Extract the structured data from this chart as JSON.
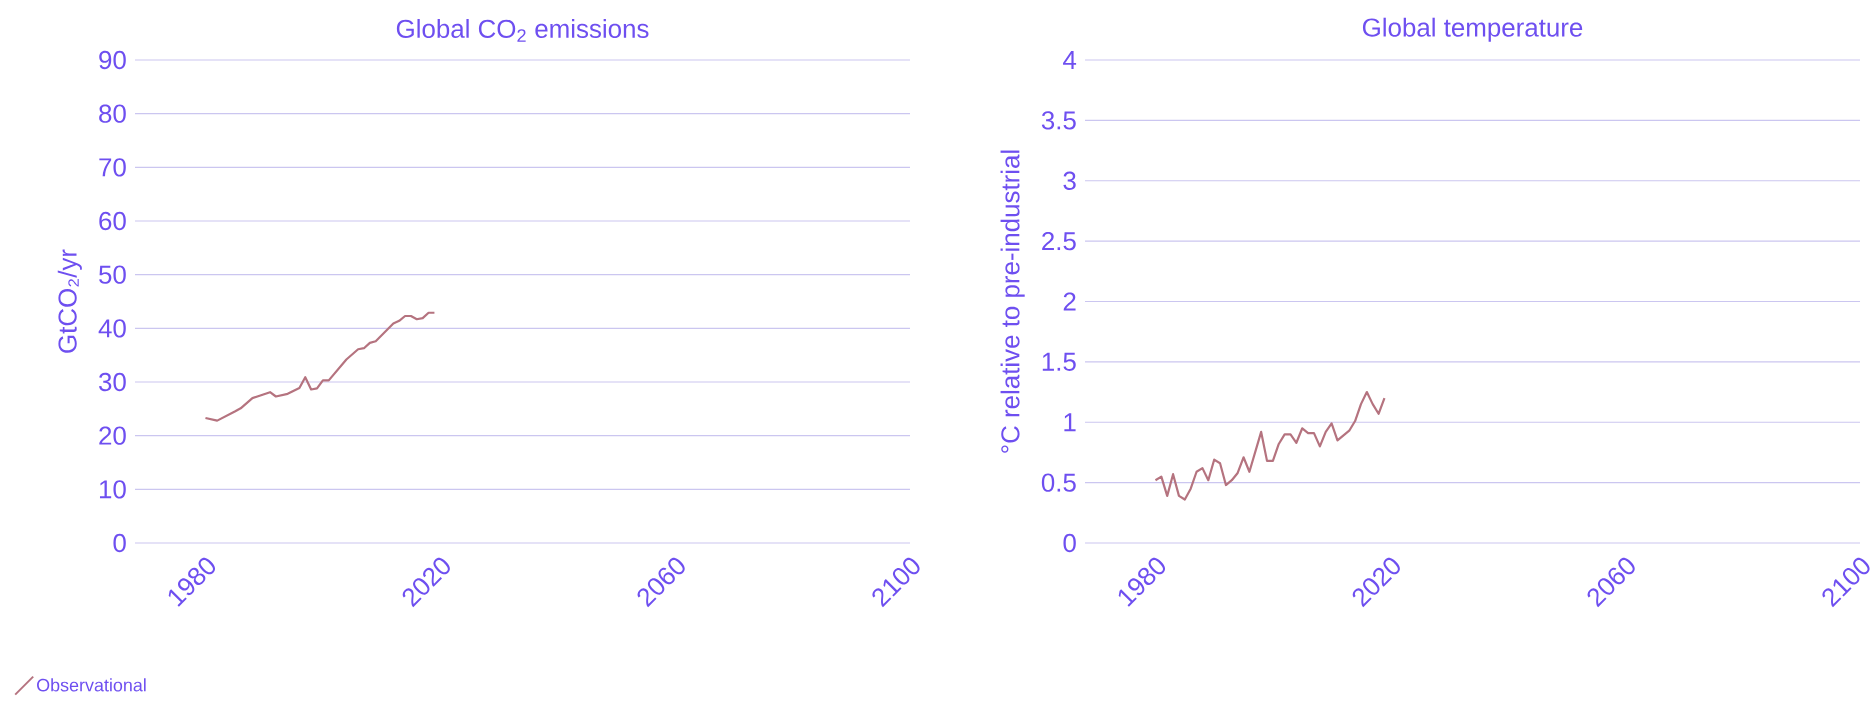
{
  "chart_data": [
    {
      "type": "line",
      "title": "Global CO$_{2}$ emissions",
      "ylabel": "GtCO₂/yr",
      "xlim": [
        1968,
        2100
      ],
      "xticks": [
        1980,
        2020,
        2060,
        2100
      ],
      "ylim": [
        0,
        90
      ],
      "yticks": [
        0,
        10,
        20,
        30,
        40,
        50,
        60,
        70,
        80,
        90
      ],
      "grid": "y",
      "legend": "bottom left",
      "marker": "none",
      "line_style": "solid",
      "series": [
        {
          "name": "Observational",
          "color": "#b5737f",
          "x": [
            1980,
            1982,
            1985,
            1986,
            1988,
            1991,
            1992,
            1994,
            1996,
            1997,
            1998,
            1999,
            2000,
            2001,
            2004,
            2006,
            2007,
            2008,
            2009,
            2012,
            2013,
            2014,
            2015,
            2016,
            2017,
            2018,
            2019
          ],
          "values": [
            23.3,
            22.8,
            24.5,
            25.1,
            27,
            28.1,
            27.3,
            27.8,
            28.9,
            30.9,
            28.6,
            28.8,
            30.3,
            30.3,
            34.2,
            36.1,
            36.3,
            37.3,
            37.6,
            40.9,
            41.4,
            42.3,
            42.3,
            41.7,
            41.9,
            42.9,
            42.9
          ]
        }
      ]
    },
    {
      "type": "line",
      "title": "Global temperature",
      "ylabel": "°C relative to pre-industrial",
      "xlim": [
        1968,
        2100
      ],
      "xticks": [
        1980,
        2020,
        2060,
        2100
      ],
      "ylim": [
        0,
        4
      ],
      "yticks": [
        0,
        0.5,
        1,
        1.5,
        2,
        2.5,
        3,
        3.5,
        4
      ],
      "grid": "y",
      "marker": "none",
      "line_style": "solid",
      "series": [
        {
          "color": "#b5737f",
          "x": [
            1980,
            1981,
            1982,
            1983,
            1984,
            1985,
            1986,
            1987,
            1988,
            1989,
            1990,
            1991,
            1992,
            1993,
            1994,
            1995,
            1996,
            1998,
            1999,
            2000,
            2001,
            2002,
            2003,
            2004,
            2005,
            2006,
            2007,
            2008,
            2009,
            2010,
            2011,
            2013,
            2014,
            2015,
            2016,
            2017,
            2018,
            2019
          ],
          "values": [
            0.52,
            0.55,
            0.39,
            0.57,
            0.39,
            0.36,
            0.45,
            0.59,
            0.62,
            0.52,
            0.69,
            0.66,
            0.48,
            0.52,
            0.58,
            0.71,
            0.59,
            0.92,
            0.68,
            0.68,
            0.82,
            0.9,
            0.9,
            0.83,
            0.95,
            0.91,
            0.91,
            0.8,
            0.92,
            0.99,
            0.85,
            0.93,
            1.01,
            1.15,
            1.25,
            1.15,
            1.07,
            1.2
          ]
        }
      ]
    }
  ]
}
